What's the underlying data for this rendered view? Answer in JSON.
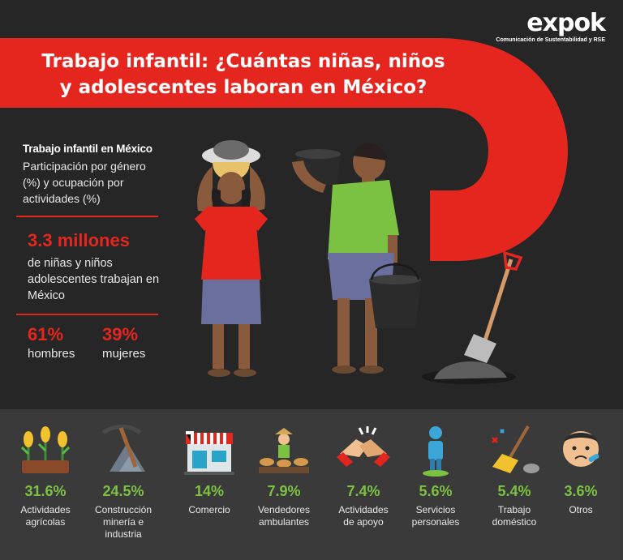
{
  "brand": {
    "name": "expok",
    "tagline": "Comunicación de Sustentabilidad y RSE"
  },
  "title": {
    "line1": "Trabajo infantil: ¿Cuántas niñas, niños",
    "line2": "y adolescentes laboran en México?"
  },
  "summary": {
    "heading": "Trabajo infantil en México",
    "description": "Participación por género (%) y ocupación por actividades (%)",
    "total_value": "3.3 millones",
    "total_desc": "de niñas y niños adolescentes trabajan en México",
    "gender": [
      {
        "value": "61%",
        "label": "hombres"
      },
      {
        "value": "39%",
        "label": "mujeres"
      }
    ]
  },
  "colors": {
    "accent_red": "#e5261f",
    "green": "#7cc242",
    "dark_bg": "#262626",
    "panel_bg": "#3a3a3a"
  },
  "chart_data": {
    "type": "table",
    "categories": [
      "Actividades agrícolas",
      "Construcción minería e industria",
      "Comercio",
      "Vendedores ambulantes",
      "Actividades de apoyo",
      "Servicios personales",
      "Trabajo doméstico",
      "Otros"
    ],
    "values": [
      31.6,
      24.5,
      14,
      7.9,
      7.4,
      5.6,
      5.4,
      3.6
    ],
    "labels": [
      "31.6%",
      "24.5%",
      "14%",
      "7.9%",
      "7.4%",
      "5.6%",
      "5.4%",
      "3.6%"
    ],
    "label_lines": [
      [
        "Actividades",
        "agrícolas"
      ],
      [
        "Construcción",
        "minería e",
        "industria"
      ],
      [
        "Comercio"
      ],
      [
        "Vendedores",
        "ambulantes"
      ],
      [
        "Actividades",
        "de apoyo"
      ],
      [
        "Servicios",
        "personales"
      ],
      [
        "Trabajo",
        "doméstico"
      ],
      [
        "Otros"
      ]
    ],
    "icons": [
      "corn-crop-icon",
      "pickaxe-rocks-icon",
      "storefront-icon",
      "street-vendor-icon",
      "handshake-icon",
      "person-icon",
      "broom-icon",
      "sick-child-icon"
    ]
  }
}
